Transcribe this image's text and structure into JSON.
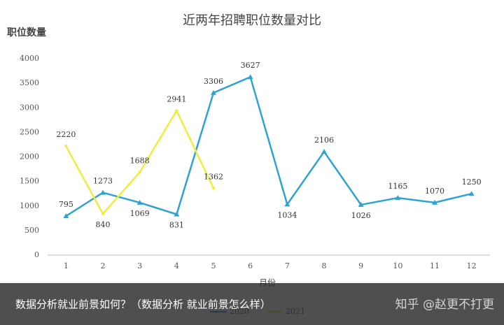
{
  "chart_data": {
    "type": "line",
    "title": "近两年招聘职位数量对比",
    "y_label": "职位数量",
    "x_label": "月份",
    "categories": [
      "1",
      "2",
      "3",
      "4",
      "5",
      "6",
      "7",
      "8",
      "9",
      "10",
      "11",
      "12"
    ],
    "series": [
      {
        "name": "2020",
        "color": "#2ea3d3",
        "values": [
          795,
          1273,
          1069,
          831,
          3306,
          3627,
          1034,
          2106,
          1026,
          1165,
          1070,
          1250
        ]
      },
      {
        "name": "2021",
        "color": "#f0ec3a",
        "values": [
          2220,
          840,
          1688,
          2941,
          1362,
          null,
          null,
          null,
          null,
          null,
          null,
          null
        ]
      }
    ],
    "ylim": [
      0,
      4000
    ],
    "yticks": [
      0,
      500,
      1000,
      1500,
      2000,
      2500,
      3000,
      3500,
      4000
    ],
    "grid": false,
    "legend": "bottom"
  },
  "caption": "数据分析就业前景如何？（数据分析 就业前景怎么样）",
  "watermark": "知乎 @赵更不打更"
}
